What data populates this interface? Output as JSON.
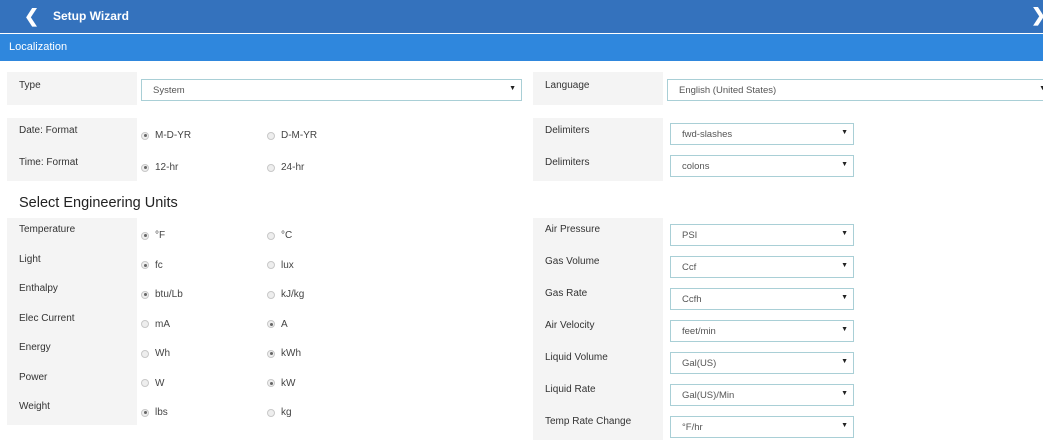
{
  "header": {
    "title": "Setup Wizard",
    "back_icon": "chevron-left-icon",
    "next_icon": "chevron-right-icon"
  },
  "section": "Localization",
  "type": {
    "label": "Type",
    "value": "System"
  },
  "language": {
    "label": "Language",
    "value": "English (United States)"
  },
  "date": {
    "label": "Date:  Format",
    "options": [
      "M-D-YR",
      "D-M-YR"
    ],
    "selected": 0,
    "delim_label": "Delimiters",
    "delim_value": "fwd-slashes"
  },
  "time": {
    "label": "Time:  Format",
    "options": [
      "12-hr",
      "24-hr"
    ],
    "selected": 0,
    "delim_label": "Delimiters",
    "delim_value": "colons"
  },
  "units_heading": "Select Engineering Units",
  "units_left": [
    {
      "label": "Temperature",
      "options": [
        "°F",
        "°C"
      ],
      "selected": 0
    },
    {
      "label": "Light",
      "options": [
        "fc",
        "lux"
      ],
      "selected": 0
    },
    {
      "label": "Enthalpy",
      "options": [
        "btu/Lb",
        "kJ/kg"
      ],
      "selected": 0
    },
    {
      "label": "Elec Current",
      "options": [
        "mA",
        "A"
      ],
      "selected": 1
    },
    {
      "label": "Energy",
      "options": [
        "Wh",
        "kWh"
      ],
      "selected": 1
    },
    {
      "label": "Power",
      "options": [
        "W",
        "kW"
      ],
      "selected": 1
    },
    {
      "label": "Weight",
      "options": [
        "lbs",
        "kg"
      ],
      "selected": 0
    }
  ],
  "units_right": [
    {
      "label": "Air Pressure",
      "value": "PSI"
    },
    {
      "label": "Gas Volume",
      "value": "Ccf"
    },
    {
      "label": "Gas Rate",
      "value": "Ccfh"
    },
    {
      "label": "Air Velocity",
      "value": "feet/min"
    },
    {
      "label": "Liquid Volume",
      "value": "Gal(US)"
    },
    {
      "label": "Liquid Rate",
      "value": "Gal(US)/Min"
    },
    {
      "label": "Temp Rate Change",
      "value": "°F/hr"
    }
  ]
}
